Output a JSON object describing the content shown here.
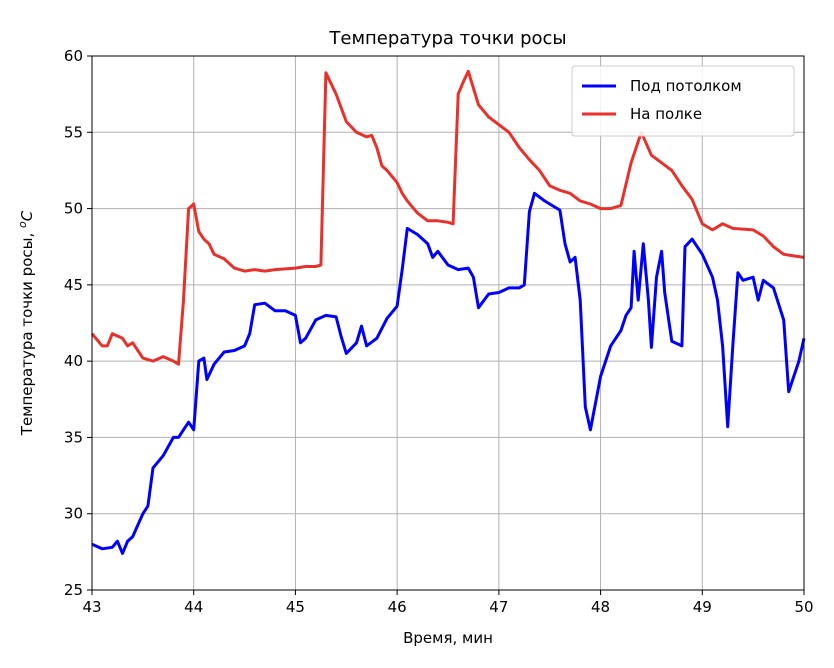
{
  "chart_data": {
    "type": "line",
    "title": "Температура точки росы",
    "xlabel": "Время, мин",
    "ylabel": "Температура точки росы, ",
    "ylabel_sup": "o",
    "ylabel_unit": "C",
    "xlim": [
      43,
      50
    ],
    "xticks": [
      43,
      44,
      45,
      46,
      47,
      48,
      49,
      50
    ],
    "ylim": [
      25,
      60
    ],
    "yticks": [
      25,
      30,
      35,
      40,
      45,
      50,
      55,
      60
    ],
    "grid": true,
    "legend": "upper right",
    "series": [
      {
        "name": "Под потолком",
        "color": "#0000ff",
        "x": [
          43.0,
          43.1,
          43.2,
          43.25,
          43.3,
          43.35,
          43.4,
          43.5,
          43.55,
          43.6,
          43.7,
          43.8,
          43.85,
          43.9,
          43.95,
          44.0,
          44.05,
          44.1,
          44.13,
          44.2,
          44.3,
          44.4,
          44.5,
          44.55,
          44.6,
          44.7,
          44.8,
          44.9,
          45.0,
          45.05,
          45.1,
          45.2,
          45.3,
          45.4,
          45.45,
          45.5,
          45.6,
          45.65,
          45.7,
          45.8,
          45.9,
          46.0,
          46.05,
          46.1,
          46.2,
          46.3,
          46.35,
          46.4,
          46.5,
          46.6,
          46.7,
          46.75,
          46.8,
          46.9,
          47.0,
          47.1,
          47.2,
          47.25,
          47.3,
          47.35,
          47.45,
          47.5,
          47.6,
          47.65,
          47.7,
          47.75,
          47.8,
          47.85,
          47.9,
          48.0,
          48.1,
          48.2,
          48.25,
          48.3,
          48.33,
          48.37,
          48.42,
          48.47,
          48.5,
          48.55,
          48.6,
          48.63,
          48.7,
          48.8,
          48.83,
          48.9,
          49.0,
          49.1,
          49.15,
          49.2,
          49.25,
          49.3,
          49.35,
          49.4,
          49.5,
          49.55,
          49.6,
          49.7,
          49.8,
          49.85,
          49.9,
          49.95,
          50.0
        ],
        "values": [
          28.0,
          27.7,
          27.8,
          28.2,
          27.4,
          28.2,
          28.5,
          30.0,
          30.5,
          33.0,
          33.8,
          35.0,
          35.0,
          35.5,
          36.0,
          35.5,
          40.0,
          40.2,
          38.8,
          39.8,
          40.6,
          40.7,
          41.0,
          41.8,
          43.7,
          43.8,
          43.3,
          43.3,
          43.0,
          41.2,
          41.5,
          42.7,
          43.0,
          42.9,
          41.6,
          40.5,
          41.2,
          42.3,
          41.0,
          41.5,
          42.8,
          43.6,
          46.0,
          48.7,
          48.3,
          47.7,
          46.8,
          47.2,
          46.3,
          46.0,
          46.1,
          45.5,
          43.5,
          44.4,
          44.5,
          44.8,
          44.8,
          45.0,
          49.8,
          51.0,
          50.5,
          50.3,
          49.9,
          47.7,
          46.5,
          46.8,
          44.0,
          37.0,
          35.5,
          39.0,
          41.0,
          42.0,
          43.0,
          43.5,
          47.2,
          44.0,
          47.7,
          44.0,
          40.9,
          45.5,
          47.2,
          44.5,
          41.3,
          41.0,
          47.5,
          48.0,
          47.0,
          45.5,
          44.0,
          41.0,
          35.7,
          41.0,
          45.8,
          45.3,
          45.5,
          44.0,
          45.3,
          44.8,
          42.7,
          38.0,
          39.0,
          40.0,
          41.5
        ]
      },
      {
        "name": "На полке",
        "color": "#e8312a",
        "x": [
          43.0,
          43.1,
          43.15,
          43.2,
          43.3,
          43.35,
          43.4,
          43.5,
          43.6,
          43.7,
          43.8,
          43.85,
          43.9,
          43.95,
          44.0,
          44.05,
          44.1,
          44.15,
          44.2,
          44.3,
          44.4,
          44.5,
          44.6,
          44.7,
          44.8,
          45.0,
          45.1,
          45.2,
          45.25,
          45.3,
          45.4,
          45.5,
          45.6,
          45.7,
          45.75,
          45.8,
          45.85,
          45.9,
          46.0,
          46.05,
          46.1,
          46.2,
          46.3,
          46.4,
          46.5,
          46.55,
          46.6,
          46.65,
          46.7,
          46.8,
          46.9,
          47.0,
          47.1,
          47.2,
          47.3,
          47.4,
          47.5,
          47.6,
          47.7,
          47.8,
          47.9,
          48.0,
          48.1,
          48.2,
          48.3,
          48.4,
          48.5,
          48.6,
          48.7,
          48.8,
          48.9,
          49.0,
          49.1,
          49.2,
          49.3,
          49.5,
          49.6,
          49.7,
          49.8,
          49.9,
          50.0
        ],
        "values": [
          41.8,
          41.0,
          41.0,
          41.8,
          41.5,
          41.0,
          41.2,
          40.2,
          40.0,
          40.3,
          40.0,
          39.8,
          44.0,
          50.0,
          50.3,
          48.5,
          48.0,
          47.7,
          47.0,
          46.7,
          46.1,
          45.9,
          46.0,
          45.9,
          46.0,
          46.1,
          46.2,
          46.2,
          46.3,
          58.9,
          57.5,
          55.7,
          55.0,
          54.7,
          54.8,
          54.0,
          52.8,
          52.5,
          51.7,
          51.0,
          50.5,
          49.7,
          49.2,
          49.2,
          49.1,
          49.0,
          57.5,
          58.3,
          59.0,
          56.8,
          56.0,
          55.5,
          55.0,
          54.0,
          53.2,
          52.5,
          51.5,
          51.2,
          51.0,
          50.5,
          50.3,
          50.0,
          50.0,
          50.2,
          53.0,
          55.0,
          53.5,
          53.0,
          52.5,
          51.5,
          50.6,
          49.0,
          48.6,
          49.0,
          48.7,
          48.6,
          48.2,
          47.5,
          47.0,
          46.9,
          46.8
        ]
      }
    ]
  }
}
